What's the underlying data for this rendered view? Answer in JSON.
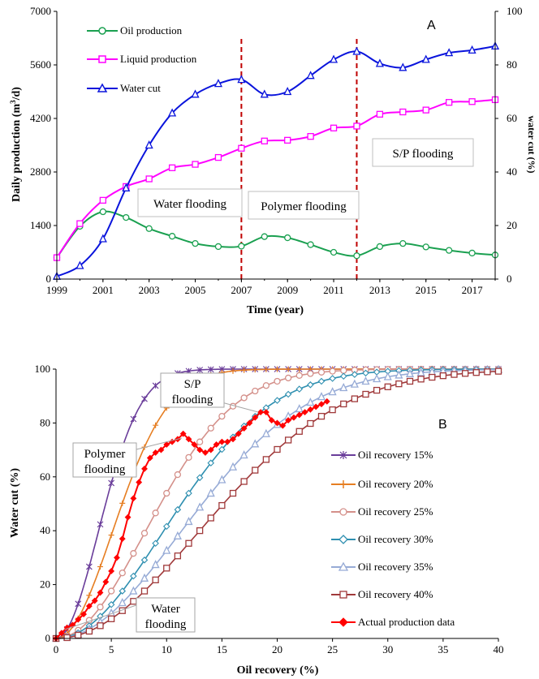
{
  "chart_data": [
    {
      "type": "line",
      "panel_label": "A",
      "xlabel": "Time (year)",
      "ylabel": "Daily production (m³/d)",
      "ylabel_parts": [
        "Daily production (m",
        "3",
        "/d)"
      ],
      "y2label": "water cut (%)",
      "x_ticks": [
        "1999",
        "2001",
        "2003",
        "2005",
        "2007",
        "2009",
        "2011",
        "2013",
        "2015",
        "2017"
      ],
      "y_ticks": [
        "0",
        "1400",
        "2800",
        "4200",
        "5600",
        "7000"
      ],
      "y2_ticks": [
        "0",
        "20",
        "40",
        "60",
        "80",
        "100"
      ],
      "xlim": [
        1999,
        2018
      ],
      "ylim": [
        0,
        7000
      ],
      "y2lim": [
        0,
        100
      ],
      "grid": false,
      "legend": "top-left",
      "x": [
        1999,
        2000,
        2001,
        2002,
        2003,
        2004,
        2005,
        2006,
        2007,
        2008,
        2009,
        2010,
        2011,
        2012,
        2013,
        2014,
        2015,
        2016,
        2017,
        2018
      ],
      "series": [
        {
          "name": "Oil production",
          "axis": "left",
          "color": "#1aa050",
          "marker": "circle",
          "values": [
            560,
            1380,
            1760,
            1610,
            1320,
            1120,
            930,
            850,
            860,
            1110,
            1080,
            900,
            700,
            610,
            850,
            930,
            840,
            750,
            680,
            630
          ]
        },
        {
          "name": "Liquid production",
          "axis": "left",
          "color": "#ff00ff",
          "marker": "square",
          "values": [
            560,
            1450,
            2060,
            2420,
            2620,
            2910,
            3000,
            3180,
            3420,
            3610,
            3630,
            3730,
            3950,
            4000,
            4310,
            4370,
            4420,
            4620,
            4640,
            4690
          ]
        },
        {
          "name": "Water cut",
          "axis": "right",
          "color": "#0a14dc",
          "marker": "triangle",
          "values": [
            1,
            5,
            15,
            34,
            50,
            62,
            69,
            73,
            74.5,
            69,
            70,
            76,
            82,
            85,
            80.5,
            79,
            82,
            84.5,
            85.5,
            87
          ]
        }
      ],
      "dividers": [
        2007,
        2012
      ],
      "annotations": [
        "Water flooding",
        "Polymer flooding",
        "S/P flooding"
      ]
    },
    {
      "type": "line",
      "panel_label": "B",
      "xlabel": "Oil recovery (%)",
      "ylabel": "Water cut (%)",
      "x_ticks": [
        "0",
        "5",
        "10",
        "15",
        "20",
        "25",
        "30",
        "35",
        "40"
      ],
      "y_ticks": [
        "0",
        "20",
        "40",
        "60",
        "80",
        "100"
      ],
      "xlim": [
        0,
        40
      ],
      "ylim": [
        0,
        100
      ],
      "grid": false,
      "legend": "bottom-right",
      "series": [
        {
          "name": "Oil recovery 15%",
          "color": "#6a3d9a",
          "marker": "star",
          "final_recovery": 15
        },
        {
          "name": "Oil recovery 20%",
          "color": "#e67e22",
          "marker": "plus",
          "final_recovery": 20
        },
        {
          "name": "Oil recovery 25%",
          "color": "#d4908a",
          "marker": "circle",
          "final_recovery": 25
        },
        {
          "name": "Oil recovery 30%",
          "color": "#2e8fb0",
          "marker": "diamond",
          "final_recovery": 30
        },
        {
          "name": "Oil recovery 35%",
          "color": "#97abd6",
          "marker": "triangle",
          "final_recovery": 35
        },
        {
          "name": "Oil recovery 40%",
          "color": "#a0393a",
          "marker": "square",
          "final_recovery": 40
        },
        {
          "name": "Actual production data",
          "color": "#ff0000",
          "marker": "diamond-filled",
          "x": [
            0,
            0.5,
            1,
            1.5,
            2,
            2.5,
            3,
            3.5,
            4,
            4.5,
            5,
            5.5,
            6,
            6.5,
            7,
            7.5,
            8,
            8.5,
            9,
            9.5,
            10,
            10.5,
            11,
            11.5,
            12,
            12.5,
            13,
            13.5,
            14,
            14.5,
            15,
            15.5,
            16,
            16.5,
            17,
            17.5,
            18,
            18.5,
            19,
            19.5,
            20,
            20.5,
            21,
            21.5,
            22,
            22.5,
            23,
            23.5,
            24,
            24.5
          ],
          "values": [
            0,
            2,
            4,
            5,
            7,
            9,
            12,
            14,
            17,
            21,
            25,
            30,
            37,
            45,
            52,
            58,
            63,
            67,
            69,
            70,
            72,
            73,
            74,
            76,
            74,
            72,
            70,
            69,
            70,
            72,
            73,
            73,
            74,
            76,
            78,
            80,
            82,
            84,
            84,
            81,
            80,
            79,
            81,
            82,
            83,
            84,
            85,
            86,
            87,
            88
          ]
        }
      ],
      "annotations": [
        "Water flooding",
        "Polymer flooding",
        "S/P flooding"
      ]
    }
  ]
}
